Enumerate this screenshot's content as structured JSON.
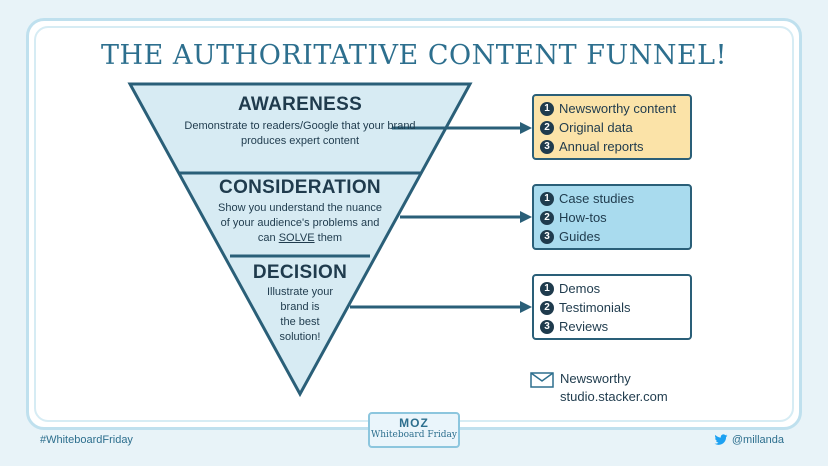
{
  "title": "THE AUTHORITATIVE CONTENT FUNNEL!",
  "colors": {
    "title": "#2d6f8e",
    "funnel_fill": "#d7ebf3",
    "funnel_stroke": "#2a5f78",
    "box1_fill": "#fbe3a8",
    "box2_fill": "#a9dbee",
    "box3_fill": "#ffffff"
  },
  "stages": [
    {
      "heading": "AWARENESS",
      "desc_lines": [
        "Demonstrate to readers/Google that your brand",
        "produces expert content"
      ]
    },
    {
      "heading": "CONSIDERATION",
      "desc_line1": "Show you understand the nuance",
      "desc_line2": "of your audience's problems and",
      "desc_line3_pre": "can ",
      "desc_line3_u": "SOLVE",
      "desc_line3_post": " them"
    },
    {
      "heading": "DECISION",
      "desc_lines": [
        "Illustrate your",
        "brand is",
        "the best",
        "solution!"
      ]
    }
  ],
  "lists": [
    {
      "items": [
        {
          "num": "1",
          "label": "Newsworthy content"
        },
        {
          "num": "2",
          "label": "Original data"
        },
        {
          "num": "3",
          "label": "Annual reports"
        }
      ]
    },
    {
      "items": [
        {
          "num": "1",
          "label": "Case studies"
        },
        {
          "num": "2",
          "label": "How-tos"
        },
        {
          "num": "3",
          "label": "Guides"
        }
      ]
    },
    {
      "items": [
        {
          "num": "1",
          "label": "Demos"
        },
        {
          "num": "2",
          "label": "Testimonials"
        },
        {
          "num": "3",
          "label": "Reviews"
        }
      ]
    }
  ],
  "source": {
    "line1": "Newsworthy",
    "line2": "studio.stacker.com",
    "icon": "envelope-icon"
  },
  "footer": {
    "hashtag": "#WhiteboardFriday",
    "handle": "@millanda",
    "handle_icon": "twitter-bird-icon",
    "logo_top": "MOZ",
    "logo_bottom": "Whiteboard Friday"
  }
}
